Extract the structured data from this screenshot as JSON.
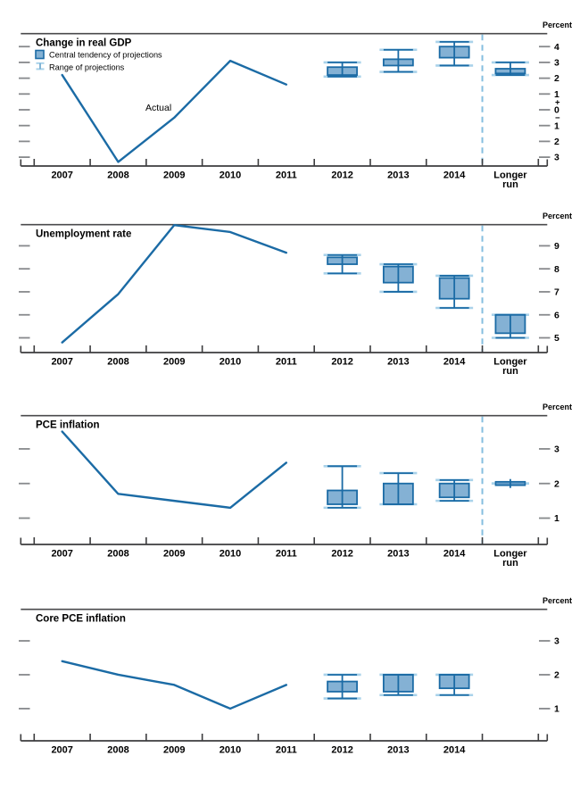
{
  "unit_label": "Percent",
  "actual_label": "Actual",
  "legend": {
    "central_tendency": "Central tendency of projections",
    "range": "Range of projections"
  },
  "x_years": [
    "2007",
    "2008",
    "2009",
    "2010",
    "2011",
    "2012",
    "2013",
    "2014"
  ],
  "longer_run_label": {
    "line1": "Longer",
    "line2": "run"
  },
  "colors": {
    "line_dark_blue": "#1b6ba5",
    "box_fill_blue": "#84b1d4",
    "range_light_blue": "#a9d2ea",
    "dashed_divider_blue": "#85bedf",
    "top_rule_gray": "#4a4a4c",
    "axis_dark": "#3c3c3e",
    "tick_dash_gray": "#87898c",
    "text_black": "#000000"
  },
  "chart_data": [
    {
      "type": "line+box",
      "title": "Change in real GDP",
      "ylabel": "Percent",
      "yticks": [
        4,
        3,
        2,
        1,
        0,
        -1,
        -2,
        -3
      ],
      "ytick_labels": [
        "4",
        "3",
        "2",
        "1",
        "0",
        "1",
        "2",
        "3"
      ],
      "sign_plus": "+",
      "sign_minus": "−",
      "ylim": [
        -3.56,
        4.82
      ],
      "grid": false,
      "legend_shown": true,
      "actual_label_shown": true,
      "has_longer_run": true,
      "actual": {
        "years": [
          2007,
          2008,
          2009,
          2010,
          2011
        ],
        "values": [
          2.2,
          -3.3,
          -0.5,
          3.1,
          1.6
        ]
      },
      "projections": [
        {
          "period": "2012",
          "central_tendency": [
            2.2,
            2.7
          ],
          "range": [
            2.1,
            3.0
          ]
        },
        {
          "period": "2013",
          "central_tendency": [
            2.8,
            3.2
          ],
          "range": [
            2.4,
            3.8
          ]
        },
        {
          "period": "2014",
          "central_tendency": [
            3.3,
            4.0
          ],
          "range": [
            2.8,
            4.3
          ]
        },
        {
          "period": "Longer run",
          "central_tendency": [
            2.3,
            2.6
          ],
          "range": [
            2.2,
            3.0
          ]
        }
      ]
    },
    {
      "type": "line+box",
      "title": "Unemployment rate",
      "ylabel": "Percent",
      "yticks": [
        9,
        8,
        7,
        6,
        5
      ],
      "ytick_labels": [
        "9",
        "8",
        "7",
        "6",
        "5"
      ],
      "ylim": [
        4.36,
        9.92
      ],
      "grid": false,
      "legend_shown": false,
      "actual_label_shown": false,
      "has_longer_run": true,
      "actual": {
        "years": [
          2007,
          2008,
          2009,
          2010,
          2011
        ],
        "values": [
          4.8,
          6.9,
          9.9,
          9.6,
          8.7
        ]
      },
      "projections": [
        {
          "period": "2012",
          "central_tendency": [
            8.2,
            8.5
          ],
          "range": [
            7.8,
            8.6
          ]
        },
        {
          "period": "2013",
          "central_tendency": [
            7.4,
            8.1
          ],
          "range": [
            7.0,
            8.2
          ]
        },
        {
          "period": "2014",
          "central_tendency": [
            6.7,
            7.6
          ],
          "range": [
            6.3,
            7.7
          ]
        },
        {
          "period": "Longer run",
          "central_tendency": [
            5.2,
            6.0
          ],
          "range": [
            5.0,
            6.0
          ]
        }
      ]
    },
    {
      "type": "line+box",
      "title": "PCE inflation",
      "ylabel": "Percent",
      "yticks": [
        3,
        2,
        1
      ],
      "ytick_labels": [
        "3",
        "2",
        "1"
      ],
      "ylim": [
        0.24,
        3.96
      ],
      "grid": false,
      "legend_shown": false,
      "actual_label_shown": false,
      "has_longer_run": true,
      "actual": {
        "years": [
          2007,
          2008,
          2009,
          2010,
          2011
        ],
        "values": [
          3.5,
          1.7,
          1.5,
          1.3,
          2.6
        ]
      },
      "projections": [
        {
          "period": "2012",
          "central_tendency": [
            1.4,
            1.8
          ],
          "range": [
            1.3,
            2.5
          ]
        },
        {
          "period": "2013",
          "central_tendency": [
            1.4,
            2.0
          ],
          "range": [
            1.4,
            2.3
          ]
        },
        {
          "period": "2014",
          "central_tendency": [
            1.6,
            2.0
          ],
          "range": [
            1.5,
            2.1
          ]
        },
        {
          "period": "Longer run",
          "central_tendency": [
            2.0,
            2.0
          ],
          "range": [
            2.0,
            2.0
          ]
        }
      ]
    },
    {
      "type": "line+box",
      "title": "Core PCE inflation",
      "ylabel": "Percent",
      "yticks": [
        3,
        2,
        1
      ],
      "ytick_labels": [
        "3",
        "2",
        "1"
      ],
      "ylim": [
        0.05,
        3.93
      ],
      "grid": false,
      "legend_shown": false,
      "actual_label_shown": false,
      "has_longer_run": false,
      "actual": {
        "years": [
          2007,
          2008,
          2009,
          2010,
          2011
        ],
        "values": [
          2.4,
          2.0,
          1.7,
          1.0,
          1.7
        ]
      },
      "projections": [
        {
          "period": "2012",
          "central_tendency": [
            1.5,
            1.8
          ],
          "range": [
            1.3,
            2.0
          ]
        },
        {
          "period": "2013",
          "central_tendency": [
            1.5,
            2.0
          ],
          "range": [
            1.4,
            2.0
          ]
        },
        {
          "period": "2014",
          "central_tendency": [
            1.6,
            2.0
          ],
          "range": [
            1.4,
            2.0
          ]
        }
      ]
    }
  ]
}
